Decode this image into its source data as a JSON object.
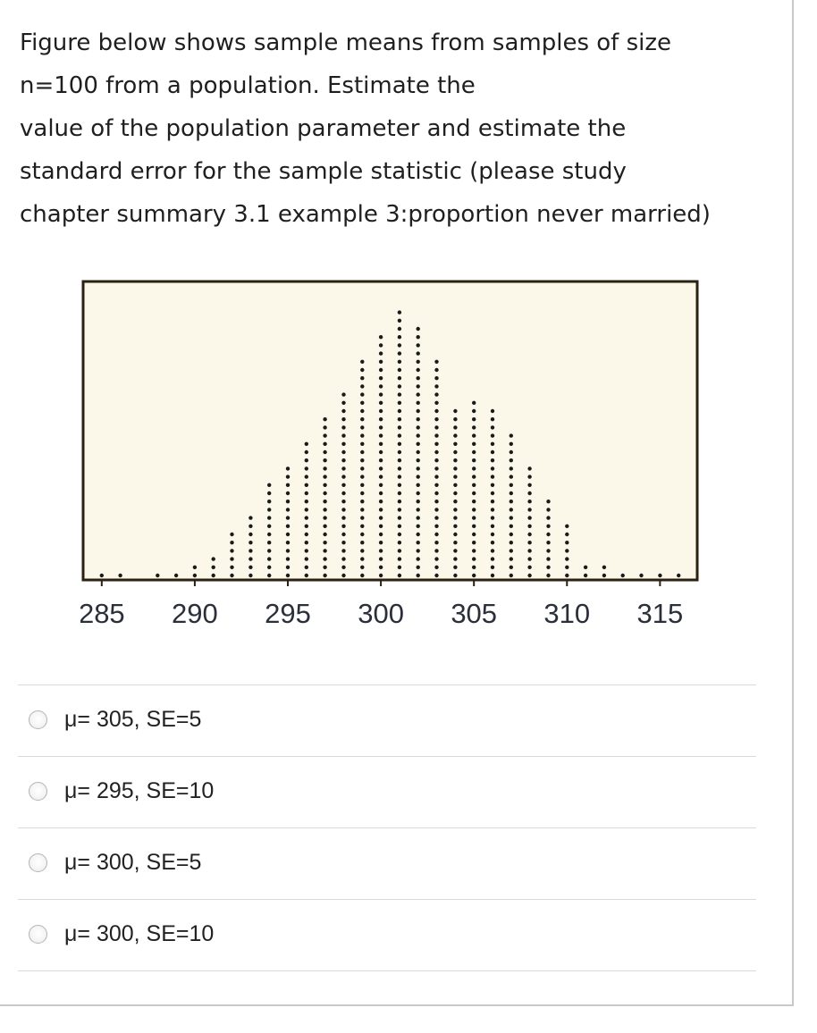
{
  "question": {
    "lines": [
      "Figure below shows sample means from samples of size",
      "n=100 from a population. Estimate the",
      "value of the population parameter and estimate the",
      "standard error for the sample statistic (please study",
      "chapter summary 3.1 example 3:proportion never married)"
    ]
  },
  "chart_data": {
    "type": "scatter",
    "subtype": "dotplot",
    "title": "",
    "xlabel": "",
    "ylabel": "",
    "xlim": [
      284,
      317
    ],
    "tick_labels": [
      "285",
      "290",
      "295",
      "300",
      "305",
      "310",
      "315"
    ],
    "tick_values": [
      285,
      290,
      295,
      300,
      305,
      310,
      315
    ],
    "bins": {
      "x": [
        285,
        286,
        288,
        289,
        290,
        291,
        292,
        293,
        294,
        295,
        296,
        297,
        298,
        299,
        300,
        301,
        302,
        303,
        304,
        305,
        306,
        307,
        308,
        309,
        310,
        311,
        312,
        313,
        314,
        315,
        316
      ],
      "counts": [
        1,
        1,
        1,
        1,
        2,
        3,
        6,
        8,
        12,
        14,
        17,
        20,
        23,
        27,
        30,
        33,
        31,
        27,
        21,
        22,
        21,
        18,
        14,
        10,
        7,
        2,
        2,
        1,
        1,
        1,
        1
      ]
    },
    "background_color": "#fbf8ea",
    "frame_color": "#2b2111",
    "dot_color": "#1a1a1a"
  },
  "choices": [
    {
      "label": "μ= 305, SE=5"
    },
    {
      "label": "μ= 295, SE=10"
    },
    {
      "label": "μ= 300, SE=5"
    },
    {
      "label": "μ= 300, SE=10"
    }
  ]
}
